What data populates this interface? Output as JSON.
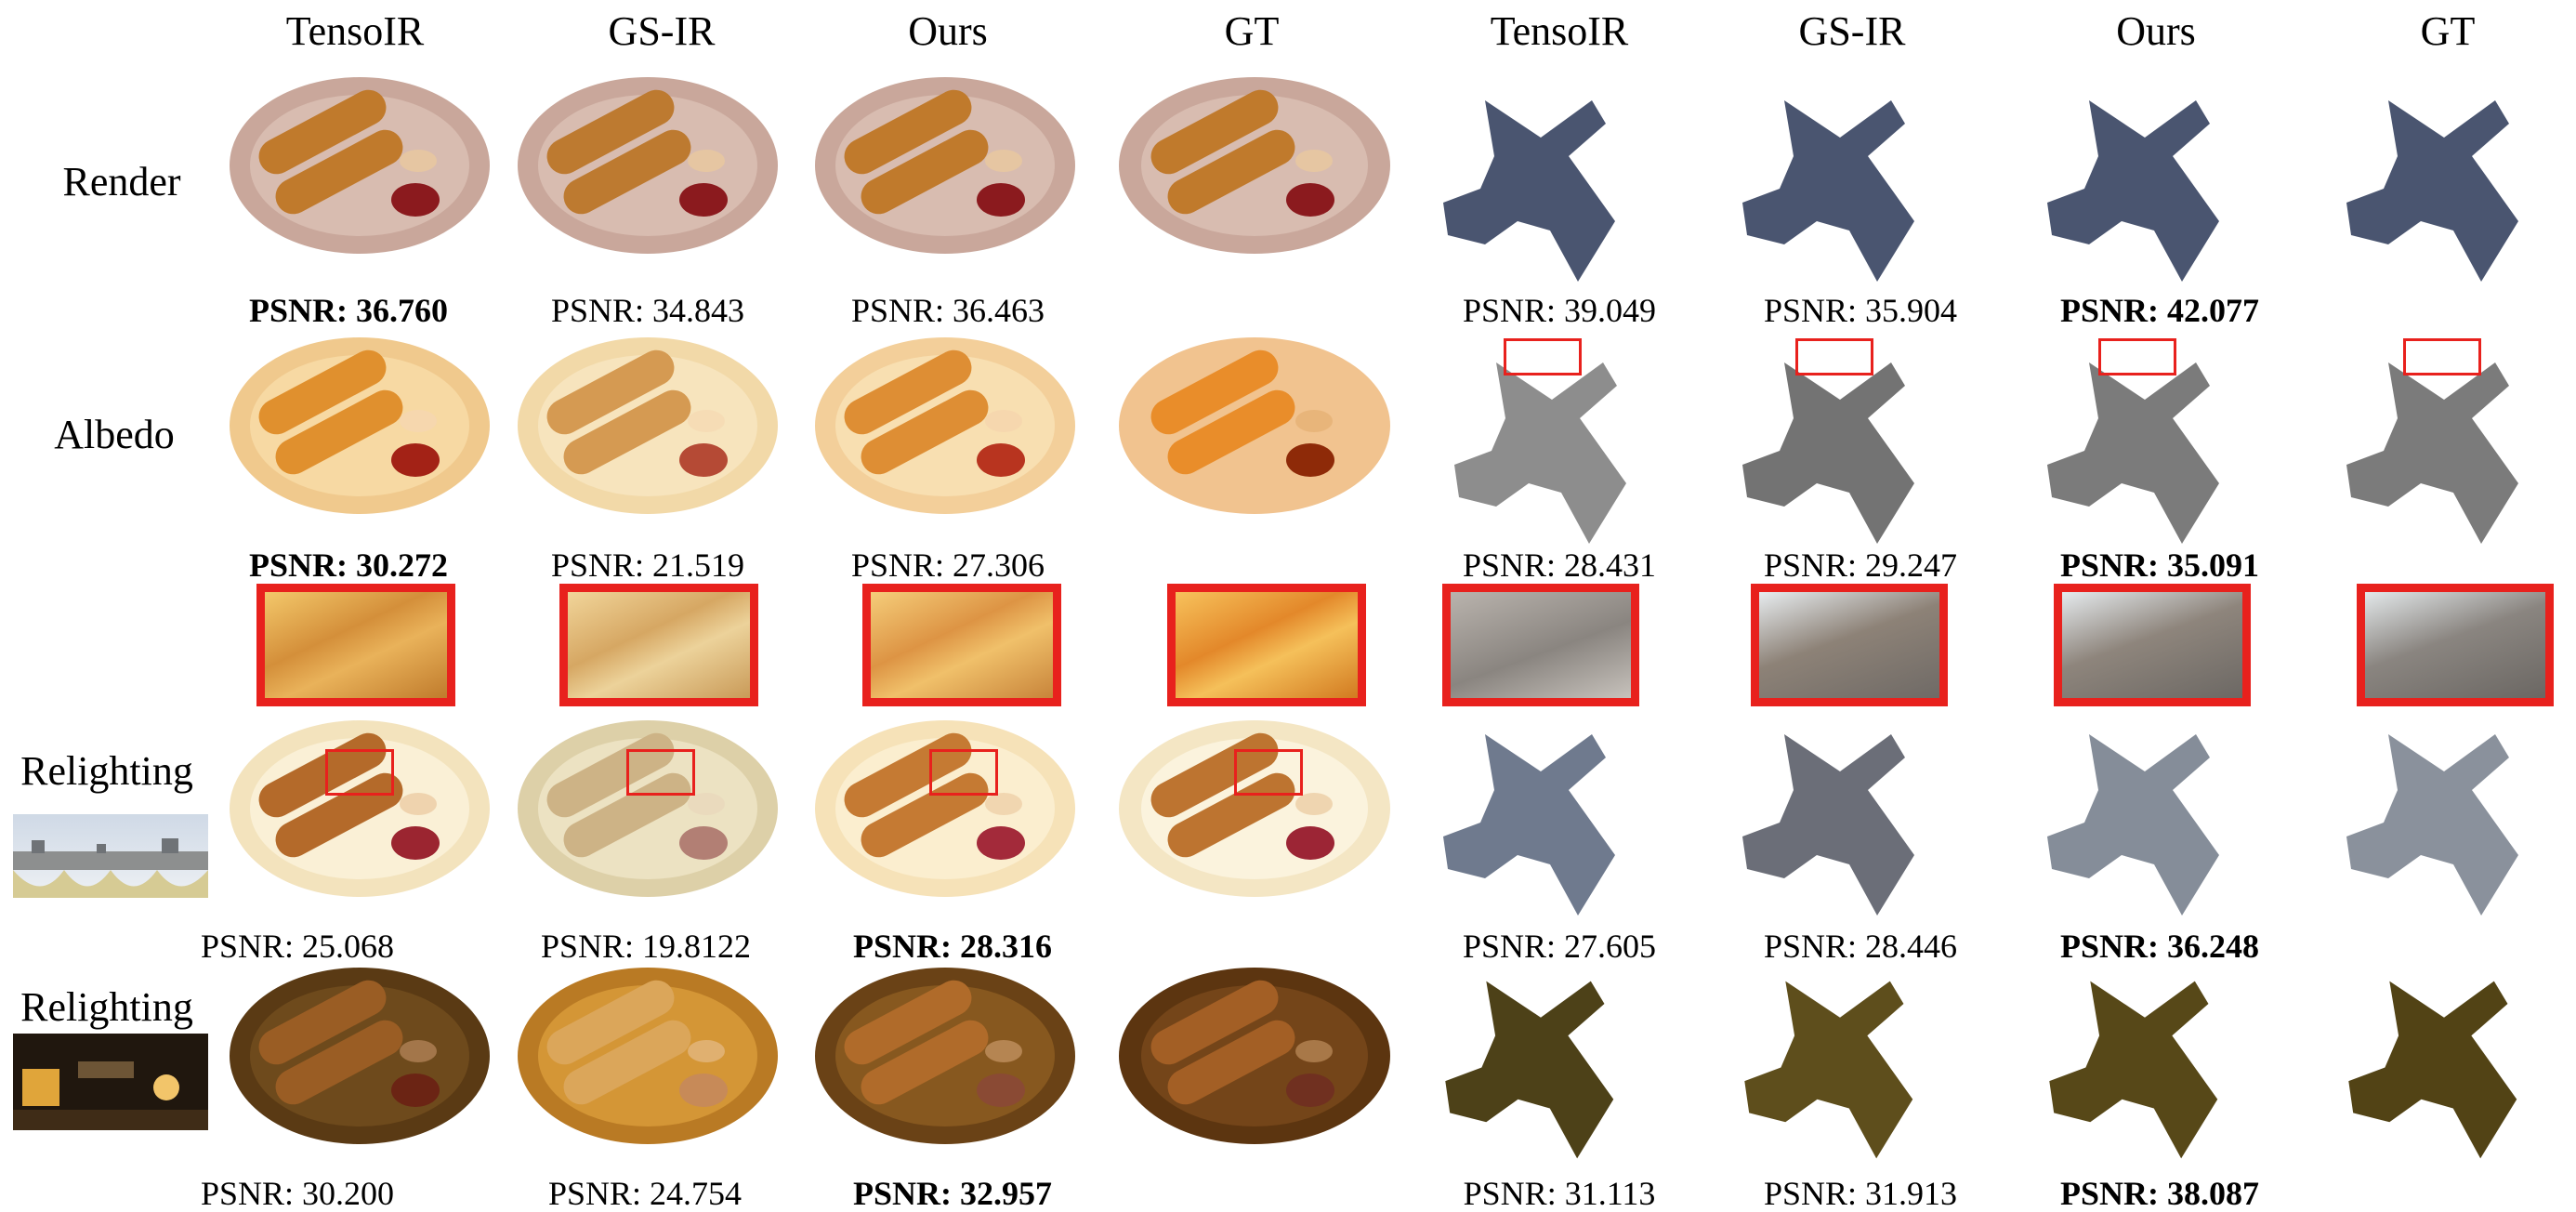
{
  "columns": [
    "TensoIR",
    "GS-IR",
    "Ours",
    "GT",
    "TensoIR",
    "GS-IR",
    "Ours",
    "GT"
  ],
  "rows": [
    "Render",
    "Albedo",
    "Relighting",
    "Relighting"
  ],
  "psnr": {
    "render": [
      "PSNR: 36.760",
      "PSNR: 34.843",
      "PSNR: 36.463",
      "PSNR: 39.049",
      "PSNR: 35.904",
      "PSNR: 42.077"
    ],
    "albedo": [
      "PSNR: 30.272",
      "PSNR: 21.519",
      "PSNR: 27.306",
      "PSNR: 28.431",
      "PSNR: 29.247",
      "PSNR: 35.091"
    ],
    "relight1": [
      "PSNR: 25.068",
      "PSNR: 19.8122",
      "PSNR: 28.316",
      "PSNR: 27.605",
      "PSNR: 28.446",
      "PSNR: 36.248"
    ],
    "relight2": [
      "PSNR: 30.200",
      "PSNR: 24.754",
      "PSNR: 32.957",
      "PSNR: 31.113",
      "PSNR: 31.913",
      "PSNR: 38.087"
    ]
  },
  "colors": {
    "highlight_box": "#e8211d",
    "render_plate": "#c9a79b",
    "albedo_plate": "#f0c98d",
    "relight1_plate": "#f4e8c6",
    "relight2_plate": "#5a3a14",
    "dragon_render": "#4a5570",
    "dragon_albedo": "#8d8d8d",
    "dragon_relight1": "#6f7a8e",
    "dragon_relight2": "#4d4118"
  }
}
